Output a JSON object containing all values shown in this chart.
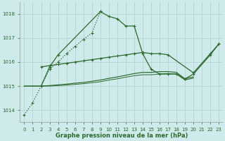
{
  "bg_color": "#ceeaea",
  "grid_color": "#b0d0d0",
  "line_color": "#2d6a2d",
  "xlabel": "Graphe pression niveau de la mer (hPa)",
  "ylim": [
    1013.5,
    1018.5
  ],
  "xlim": [
    -0.5,
    23.5
  ],
  "yticks": [
    1014,
    1015,
    1016,
    1017,
    1018
  ],
  "xticks": [
    0,
    1,
    2,
    3,
    4,
    5,
    6,
    7,
    8,
    9,
    10,
    11,
    12,
    13,
    14,
    15,
    16,
    17,
    18,
    19,
    20,
    21,
    22,
    23
  ],
  "dotted_x": [
    0,
    1,
    2,
    3,
    4,
    5,
    6,
    7,
    8,
    9
  ],
  "dotted_y": [
    1013.8,
    1014.3,
    1015.0,
    1015.7,
    1016.0,
    1016.35,
    1016.65,
    1016.95,
    1017.2,
    1018.1
  ],
  "peak_x": [
    2,
    3,
    4,
    9,
    10,
    11,
    12,
    13,
    14,
    15,
    16,
    17,
    18,
    19,
    20,
    22,
    23
  ],
  "peak_y": [
    1015.0,
    1015.8,
    1016.3,
    1018.1,
    1017.9,
    1017.8,
    1017.5,
    1017.5,
    1016.35,
    1015.7,
    1015.5,
    1015.5,
    1015.5,
    1015.3,
    1015.5,
    1016.3,
    1016.75
  ],
  "upper_x": [
    2,
    3,
    4,
    5,
    6,
    7,
    8,
    9,
    10,
    11,
    12,
    13,
    14,
    15,
    16,
    17,
    20,
    22,
    23
  ],
  "upper_y": [
    1015.8,
    1015.85,
    1015.9,
    1015.95,
    1016.0,
    1016.05,
    1016.1,
    1016.15,
    1016.2,
    1016.25,
    1016.3,
    1016.35,
    1016.4,
    1016.35,
    1016.35,
    1016.3,
    1015.55,
    1016.35,
    1016.75
  ],
  "flat1_x": [
    0,
    1,
    2,
    3,
    4,
    5,
    6,
    7,
    8,
    9,
    10,
    11,
    12,
    13,
    14,
    15,
    16,
    17,
    18,
    19,
    20
  ],
  "flat1_y": [
    1015.0,
    1015.0,
    1015.0,
    1015.02,
    1015.05,
    1015.08,
    1015.12,
    1015.15,
    1015.2,
    1015.25,
    1015.32,
    1015.38,
    1015.45,
    1015.52,
    1015.57,
    1015.57,
    1015.6,
    1015.6,
    1015.57,
    1015.3,
    1015.38
  ],
  "flat2_x": [
    0,
    1,
    2,
    3,
    4,
    5,
    6,
    7,
    8,
    9,
    10,
    11,
    12,
    13,
    14,
    15,
    16,
    17,
    18,
    19,
    20
  ],
  "flat2_y": [
    1015.0,
    1015.0,
    1015.0,
    1015.0,
    1015.02,
    1015.04,
    1015.07,
    1015.1,
    1015.14,
    1015.18,
    1015.25,
    1015.3,
    1015.37,
    1015.43,
    1015.47,
    1015.47,
    1015.5,
    1015.52,
    1015.5,
    1015.25,
    1015.33
  ]
}
